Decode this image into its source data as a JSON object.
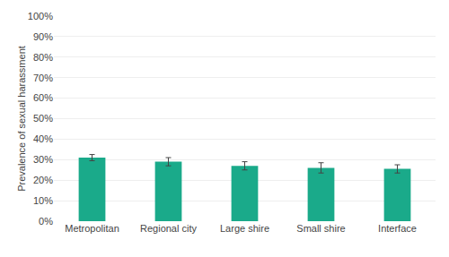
{
  "chart_data": {
    "type": "bar",
    "categories": [
      "Metropolitan",
      "Regional city",
      "Large shire",
      "Small shire",
      "Interface"
    ],
    "values": [
      0.31,
      0.29,
      0.27,
      0.26,
      0.255
    ],
    "errors": [
      0.015,
      0.02,
      0.02,
      0.025,
      0.02
    ],
    "color": "#1aaa8a",
    "ylabel": "Prevalence of sexual harassment",
    "ylim": [
      0,
      1.0
    ],
    "yticks": [
      {
        "value": 0,
        "label": "0%"
      },
      {
        "value": 0.1,
        "label": "10%"
      },
      {
        "value": 0.2,
        "label": "20%"
      },
      {
        "value": 0.3,
        "label": "30%"
      },
      {
        "value": 0.4,
        "label": "40%"
      },
      {
        "value": 0.5,
        "label": "50%"
      },
      {
        "value": 0.6,
        "label": "60%"
      },
      {
        "value": 0.7,
        "label": "70%"
      },
      {
        "value": 0.8,
        "label": "80%"
      },
      {
        "value": 0.9,
        "label": "90%"
      },
      {
        "value": 1.0,
        "label": "100%"
      }
    ],
    "grid": true
  }
}
